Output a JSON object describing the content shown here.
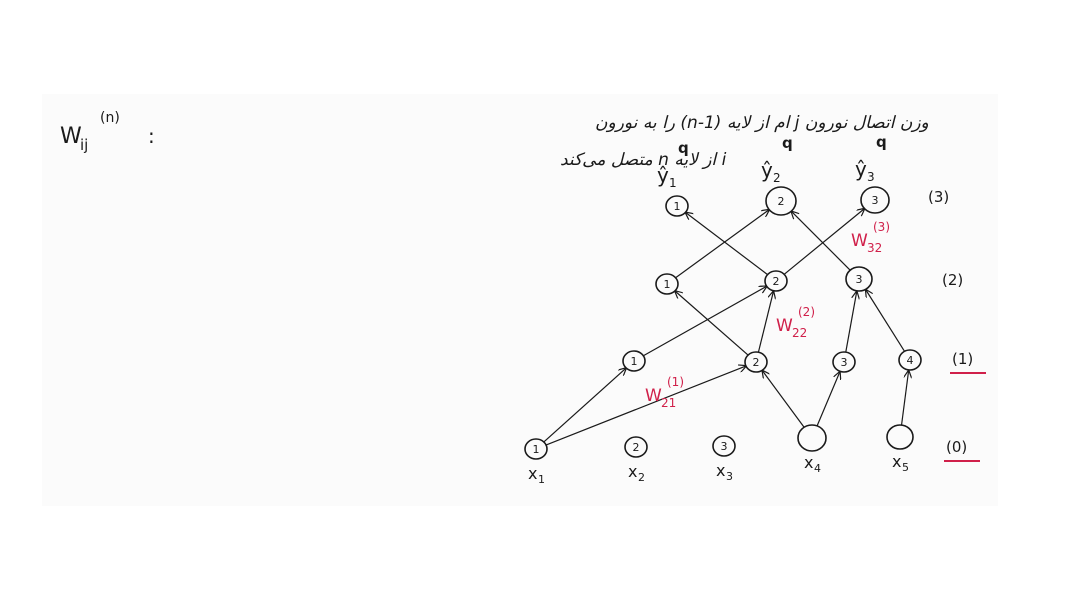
{
  "notation": {
    "symbol_base": "W",
    "symbol_sub": "ij",
    "symbol_sup": "(n)",
    "colon": ":",
    "definition_line1": "وزن اتصال نورون j ام از لایه (n-1) را به نورون",
    "definition_line2": "i از لایه n متصل می‌کند"
  },
  "layers": [
    {
      "id": "layer0",
      "label": "(0)",
      "underlined": true,
      "underline_color": "#d0204a"
    },
    {
      "id": "layer1",
      "label": "(1)",
      "underlined": true,
      "underline_color": "#d0204a"
    },
    {
      "id": "layer2",
      "label": "(2)",
      "underlined": false
    },
    {
      "id": "layer3",
      "label": "(3)",
      "underlined": false
    }
  ],
  "inputs": [
    {
      "id": "x1",
      "num": "1",
      "var": "x",
      "sub": "1"
    },
    {
      "id": "x2",
      "num": "2",
      "var": "x",
      "sub": "2"
    },
    {
      "id": "x3",
      "num": "3",
      "var": "x",
      "sub": "3"
    },
    {
      "id": "x4",
      "num": "",
      "var": "x",
      "sub": "4"
    },
    {
      "id": "x5",
      "num": "",
      "var": "x",
      "sub": "5"
    }
  ],
  "hidden1": [
    {
      "id": "h1_1",
      "num": "1"
    },
    {
      "id": "h1_2",
      "num": "2"
    },
    {
      "id": "h1_3",
      "num": "3"
    },
    {
      "id": "h1_4",
      "num": "4"
    }
  ],
  "hidden2": [
    {
      "id": "h2_1",
      "num": "1"
    },
    {
      "id": "h2_2",
      "num": "2"
    },
    {
      "id": "h2_3",
      "num": "3"
    }
  ],
  "outputs": [
    {
      "id": "o1",
      "num": "1",
      "label": "ŷ",
      "sub": "1",
      "mark": "q"
    },
    {
      "id": "o2",
      "num": "2",
      "label": "ŷ",
      "sub": "2",
      "mark": "q"
    },
    {
      "id": "o3",
      "num": "3",
      "label": "ŷ",
      "sub": "3",
      "mark": "q"
    }
  ],
  "edges": [
    {
      "from": "x1",
      "to": "h1_1"
    },
    {
      "from": "x1",
      "to": "h1_2"
    },
    {
      "from": "x4",
      "to": "h1_2"
    },
    {
      "from": "x4",
      "to": "h1_3"
    },
    {
      "from": "x5",
      "to": "h1_4"
    },
    {
      "from": "h1_1",
      "to": "h2_2"
    },
    {
      "from": "h1_2",
      "to": "h2_1"
    },
    {
      "from": "h1_2",
      "to": "h2_2"
    },
    {
      "from": "h1_3",
      "to": "h2_3"
    },
    {
      "from": "h1_4",
      "to": "h2_3"
    },
    {
      "from": "h2_1",
      "to": "o2"
    },
    {
      "from": "h2_2",
      "to": "o1"
    },
    {
      "from": "h2_2",
      "to": "o3"
    },
    {
      "from": "h2_3",
      "to": "o2"
    }
  ],
  "weight_labels": [
    {
      "id": "w21_1",
      "base": "W",
      "sub": "21",
      "sup": "(1)",
      "color": "#d0204a"
    },
    {
      "id": "w22_2",
      "base": "W",
      "sub": "22",
      "sup": "(2)",
      "color": "#d0204a"
    },
    {
      "id": "w32_3",
      "base": "W",
      "sub": "32",
      "sup": "(3)",
      "color": "#d0204a"
    }
  ]
}
